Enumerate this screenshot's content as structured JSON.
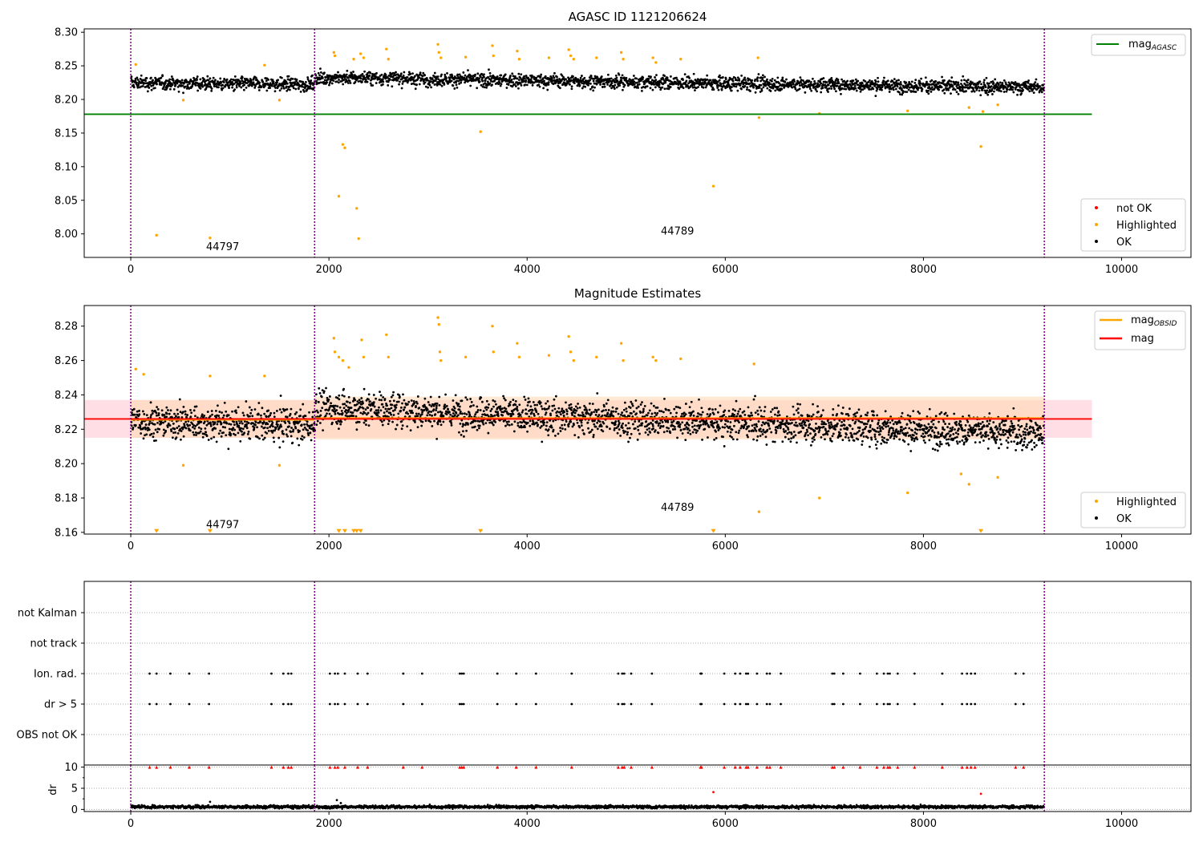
{
  "colors": {
    "ok": "#000000",
    "highlighted": "#ffa500",
    "not_ok": "#ff0000",
    "mag_agasc": "#008000",
    "mag_obsid": "#ffa500",
    "mag": "#ff0000",
    "obs_boundary": "#800080",
    "band": "#ffc0cb",
    "band_obsid": "#ffd7b0",
    "grid": "#aaaaaa"
  },
  "chart_data": [
    {
      "id": "agasc",
      "type": "scatter",
      "title": "AGASC ID 1121206624",
      "xlim": [
        -470,
        10700
      ],
      "ylim": [
        7.965,
        8.305
      ],
      "xticks": [
        0,
        2000,
        4000,
        6000,
        8000,
        10000
      ],
      "xtick_labels": [
        "0",
        "2000",
        "4000",
        "6000",
        "8000",
        "10000"
      ],
      "yticks": [
        8.0,
        8.05,
        8.1,
        8.15,
        8.2,
        8.25,
        8.3
      ],
      "ytick_labels": [
        "8.00",
        "8.05",
        "8.10",
        "8.15",
        "8.20",
        "8.25",
        "8.30"
      ],
      "obs_boundaries": [
        0,
        1855,
        9220
      ],
      "obsid_labels": [
        {
          "x": 760,
          "y": 7.976,
          "text": "44797"
        },
        {
          "x": 5350,
          "y": 7.999,
          "text": "44789"
        }
      ],
      "mag_agasc": {
        "value": 8.178,
        "x_range": [
          -470,
          9700
        ]
      },
      "legend_top": {
        "placement": "upper right",
        "entries": [
          {
            "label": "mag",
            "subscript": "AGASC",
            "color": "#008000"
          }
        ]
      },
      "legend_bottom": {
        "placement": "lower right",
        "entries": [
          {
            "label": "not OK",
            "color": "#ff0000"
          },
          {
            "label": "Highlighted",
            "color": "#ffa500"
          },
          {
            "label": "OK",
            "color": "#000000"
          }
        ]
      },
      "ok_trend": {
        "x": [
          0,
          1855,
          1860,
          2500,
          3000,
          4000,
          5000,
          6000,
          7000,
          8000,
          9220
        ],
        "y": [
          8.225,
          8.222,
          8.232,
          8.232,
          8.23,
          8.228,
          8.226,
          8.224,
          8.222,
          8.22,
          8.218
        ]
      },
      "ok_scatter": 0.007,
      "highlighted": {
        "x": [
          50,
          260,
          530,
          800,
          1350,
          1500,
          2050,
          2060,
          2100,
          2140,
          2160,
          2250,
          2280,
          2300,
          2320,
          2350,
          2580,
          2600,
          3100,
          3110,
          3130,
          3380,
          3530,
          3650,
          3660,
          3900,
          3920,
          4220,
          4420,
          4440,
          4470,
          4700,
          4950,
          4970,
          5270,
          5300,
          5550,
          5880,
          6330,
          6340,
          6950,
          7840,
          8460,
          8580,
          8600,
          8750
        ],
        "y": [
          8.252,
          7.998,
          8.199,
          7.994,
          8.251,
          8.199,
          8.27,
          8.265,
          8.056,
          8.133,
          8.128,
          8.26,
          8.038,
          7.993,
          8.268,
          8.262,
          8.275,
          8.26,
          8.282,
          8.27,
          8.262,
          8.263,
          8.152,
          8.28,
          8.265,
          8.272,
          8.26,
          8.262,
          8.274,
          8.265,
          8.26,
          8.262,
          8.27,
          8.26,
          8.262,
          8.255,
          8.26,
          8.071,
          8.262,
          8.173,
          8.179,
          8.183,
          8.188,
          8.13,
          8.182,
          8.192
        ]
      },
      "not_ok": {
        "x": [],
        "y": []
      }
    },
    {
      "id": "magnitude",
      "type": "scatter",
      "title": "Magnitude Estimates",
      "xlim": [
        -470,
        10700
      ],
      "ylim": [
        8.159,
        8.292
      ],
      "xticks": [
        0,
        2000,
        4000,
        6000,
        8000,
        10000
      ],
      "xtick_labels": [
        "0",
        "2000",
        "4000",
        "6000",
        "8000",
        "10000"
      ],
      "yticks": [
        8.16,
        8.18,
        8.2,
        8.22,
        8.24,
        8.26,
        8.28
      ],
      "ytick_labels": [
        "8.16",
        "8.18",
        "8.20",
        "8.22",
        "8.24",
        "8.26",
        "8.28"
      ],
      "obs_boundaries": [
        0,
        1855,
        9220
      ],
      "obsid_labels": [
        {
          "x": 760,
          "y": 8.1625,
          "text": "44797"
        },
        {
          "x": 5350,
          "y": 8.1725,
          "text": "44789"
        }
      ],
      "mag": {
        "value": 8.226,
        "x_range": [
          -470,
          9700
        ],
        "band": [
          8.215,
          8.237
        ]
      },
      "mag_obsid": [
        {
          "x_range": [
            0,
            1855
          ],
          "value": 8.2255,
          "band": [
            8.215,
            8.237
          ]
        },
        {
          "x_range": [
            1855,
            9220
          ],
          "value": 8.2265,
          "band": [
            8.214,
            8.239
          ]
        }
      ],
      "legend_top": {
        "placement": "upper right",
        "entries": [
          {
            "label": "mag",
            "subscript": "OBSID",
            "color": "#ffa500"
          },
          {
            "label": "mag",
            "subscript": "",
            "color": "#ff0000"
          }
        ]
      },
      "legend_bottom": {
        "placement": "lower right",
        "entries": [
          {
            "label": "Highlighted",
            "color": "#ffa500"
          },
          {
            "label": "OK",
            "color": "#000000"
          }
        ]
      },
      "ok_trend": {
        "x": [
          0,
          1855,
          1860,
          2500,
          3000,
          4000,
          5000,
          6000,
          7000,
          8000,
          9220
        ],
        "y": [
          8.225,
          8.222,
          8.232,
          8.232,
          8.23,
          8.228,
          8.226,
          8.224,
          8.222,
          8.22,
          8.218
        ]
      },
      "ok_scatter": 0.007,
      "highlighted": {
        "x": [
          50,
          130,
          530,
          800,
          1350,
          1500,
          2050,
          2060,
          2100,
          2140,
          2200,
          2330,
          2350,
          2580,
          2600,
          3100,
          3110,
          3120,
          3130,
          3380,
          3650,
          3660,
          3900,
          3920,
          4220,
          4420,
          4440,
          4470,
          4700,
          4950,
          4970,
          5270,
          5300,
          5550,
          6290,
          6340,
          6950,
          7840,
          8380,
          8460,
          8750
        ],
        "y": [
          8.255,
          8.252,
          8.199,
          8.251,
          8.251,
          8.199,
          8.273,
          8.265,
          8.262,
          8.26,
          8.256,
          8.272,
          8.262,
          8.275,
          8.262,
          8.285,
          8.281,
          8.265,
          8.26,
          8.262,
          8.28,
          8.265,
          8.27,
          8.262,
          8.263,
          8.274,
          8.265,
          8.26,
          8.262,
          8.27,
          8.26,
          8.262,
          8.26,
          8.261,
          8.258,
          8.172,
          8.18,
          8.183,
          8.194,
          8.188,
          8.192
        ]
      },
      "lower_limit_markers": {
        "x": [
          260,
          800,
          2100,
          2160,
          2250,
          2280,
          2320,
          3530,
          5880,
          8580
        ],
        "y": 8.1605
      }
    },
    {
      "id": "flags",
      "type": "scatter",
      "categories": [
        "not Kalman",
        "not track",
        "Ion. rad.",
        "dr > 5",
        "OBS not OK"
      ],
      "xlim": [
        -470,
        10700
      ],
      "obs_boundaries": [
        0,
        1855,
        9220
      ],
      "flag_x": [
        190,
        260,
        400,
        590,
        790,
        1420,
        1540,
        1590,
        1620,
        2010,
        2060,
        2090,
        2160,
        2290,
        2390,
        2750,
        2940,
        3320,
        3340,
        3360,
        3700,
        3890,
        4090,
        4450,
        4920,
        4960,
        4980,
        5050,
        5260,
        5750,
        5760,
        5990,
        6100,
        6150,
        6210,
        6230,
        6320,
        6420,
        6450,
        6560,
        7080,
        7100,
        7190,
        7360,
        7530,
        7600,
        7640,
        7660,
        7740,
        7910,
        8190,
        8390,
        8440,
        8480,
        8520,
        8930,
        9010
      ],
      "flag_rows": [
        "Ion. rad.",
        "dr > 5"
      ]
    },
    {
      "id": "dr",
      "type": "scatter",
      "ylabel": "dr",
      "xlim": [
        -470,
        10700
      ],
      "ylim": [
        -0.5,
        10.5
      ],
      "xticks": [
        0,
        2000,
        4000,
        6000,
        8000,
        10000
      ],
      "xtick_labels": [
        "0",
        "2000",
        "4000",
        "6000",
        "8000",
        "10000"
      ],
      "yticks": [
        0,
        5,
        10
      ],
      "ytick_labels": [
        "0",
        "5",
        "10"
      ],
      "obs_boundaries": [
        0,
        1855,
        9220
      ],
      "ok_trend": {
        "x": [
          0,
          9220
        ],
        "y": [
          0.6,
          0.6
        ]
      },
      "ok_scatter": 0.25,
      "outliers_ok": {
        "x": [
          800,
          2080,
          2120
        ],
        "y": [
          1.8,
          2.2,
          1.5
        ]
      },
      "outliers_not_ok": {
        "x": [
          5880,
          8580
        ],
        "y": [
          4.1,
          3.7
        ]
      },
      "clipped_x": [
        190,
        260,
        400,
        590,
        790,
        1420,
        1540,
        1590,
        1620,
        2010,
        2060,
        2090,
        2160,
        2290,
        2390,
        2750,
        2940,
        3320,
        3340,
        3360,
        3700,
        3890,
        4090,
        4450,
        4920,
        4960,
        4980,
        5050,
        5260,
        5750,
        5760,
        5990,
        6100,
        6150,
        6210,
        6230,
        6320,
        6420,
        6450,
        6560,
        7080,
        7100,
        7190,
        7360,
        7530,
        7600,
        7640,
        7660,
        7740,
        7910,
        8190,
        8390,
        8440,
        8480,
        8520,
        8930,
        9010
      ],
      "clipped_value": 10
    }
  ]
}
